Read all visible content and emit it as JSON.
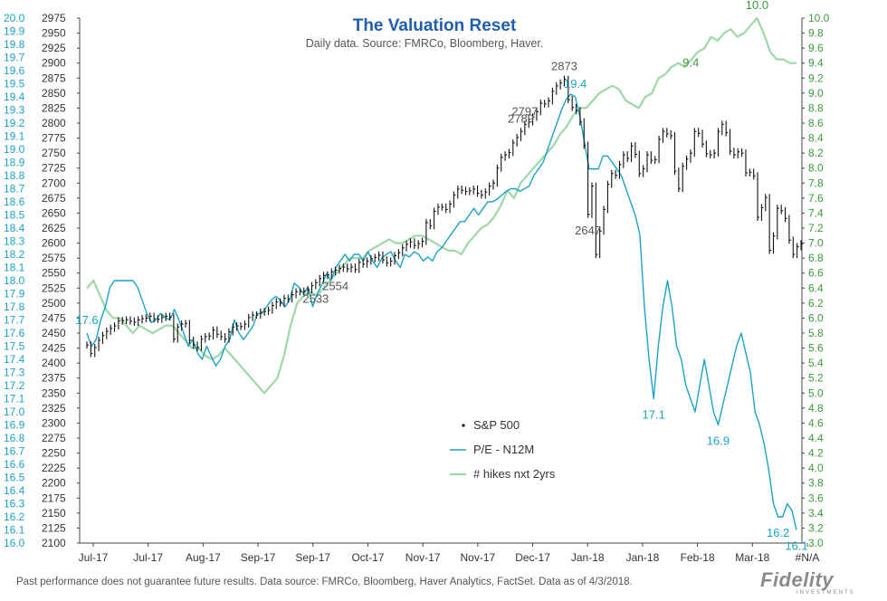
{
  "chart_data": {
    "type": "line",
    "title": "The Valuation Reset",
    "subtitle": "Daily data.  Source: FMRCo, Bloomberg, Haver.",
    "x_labels": [
      "Jul-17",
      "Jul-17",
      "Aug-17",
      "Sep-17",
      "Sep-17",
      "Oct-17",
      "Nov-17",
      "Nov-17",
      "Dec-17",
      "Jan-18",
      "Jan-18",
      "Feb-18",
      "Mar-18",
      "#N/A"
    ],
    "axes": {
      "left": {
        "range": [
          16.0,
          20.0
        ],
        "ticks": [
          "20.0",
          "19.9",
          "19.8",
          "19.7",
          "19.6",
          "19.5",
          "19.4",
          "19.3",
          "19.2",
          "19.1",
          "19.0",
          "18.9",
          "18.8",
          "18.7",
          "18.6",
          "18.5",
          "18.4",
          "18.3",
          "18.2",
          "18.1",
          "18.0",
          "17.9",
          "17.8",
          "17.7",
          "17.6",
          "17.5",
          "17.4",
          "17.3",
          "17.2",
          "17.1",
          "17.0",
          "16.9",
          "16.8",
          "16.7",
          "16.6",
          "16.5",
          "16.4",
          "16.3",
          "16.2",
          "16.1",
          "16.0"
        ]
      },
      "middle": {
        "range": [
          2100,
          2975
        ],
        "ticks": [
          "2975",
          "2950",
          "2925",
          "2900",
          "2875",
          "2850",
          "2825",
          "2800",
          "2775",
          "2750",
          "2725",
          "2700",
          "2675",
          "2650",
          "2625",
          "2600",
          "2575",
          "2550",
          "2525",
          "2500",
          "2475",
          "2450",
          "2425",
          "2400",
          "2375",
          "2350",
          "2325",
          "2300",
          "2275",
          "2250",
          "2225",
          "2200",
          "2175",
          "2150",
          "2125",
          "2100"
        ]
      },
      "right": {
        "range": [
          3.0,
          10.0
        ],
        "ticks": [
          "10.0",
          "9.8",
          "9.6",
          "9.4",
          "9.2",
          "9.0",
          "8.8",
          "8.6",
          "8.4",
          "8.2",
          "8.0",
          "7.8",
          "7.6",
          "7.4",
          "7.2",
          "7.0",
          "6.8",
          "6.6",
          "6.4",
          "6.2",
          "6.0",
          "5.8",
          "5.6",
          "5.4",
          "5.2",
          "5.0",
          "4.8",
          "4.6",
          "4.4",
          "4.2",
          "4.0",
          "3.8",
          "3.6",
          "3.4",
          "3.2",
          "3.0"
        ]
      }
    },
    "series": [
      {
        "name": "S&P 500",
        "axis": "middle",
        "color": "#111111",
        "values": [
          2430,
          2416,
          2426,
          2438,
          2446,
          2453,
          2458,
          2462,
          2470,
          2471,
          2472,
          2470,
          2468,
          2472,
          2474,
          2475,
          2478,
          2474,
          2473,
          2476,
          2478,
          2477,
          2440,
          2460,
          2465,
          2466,
          2438,
          2430,
          2426,
          2440,
          2444,
          2445,
          2455,
          2448,
          2444,
          2440,
          2452,
          2460,
          2462,
          2461,
          2465,
          2476,
          2480,
          2480,
          2485,
          2486,
          2488,
          2496,
          2502,
          2500,
          2508,
          2507,
          2514,
          2519,
          2519,
          2520,
          2522,
          2529,
          2534,
          2541,
          2546,
          2547,
          2552,
          2555,
          2558,
          2560,
          2557,
          2560,
          2556,
          2568,
          2565,
          2570,
          2574,
          2576,
          2580,
          2572,
          2567,
          2570,
          2579,
          2584,
          2592,
          2598,
          2602,
          2596,
          2599,
          2603,
          2634,
          2629,
          2653,
          2660,
          2660,
          2656,
          2665,
          2680,
          2690,
          2688,
          2686,
          2687,
          2690,
          2683,
          2680,
          2685,
          2695,
          2700,
          2725,
          2743,
          2747,
          2751,
          2767,
          2776,
          2786,
          2798,
          2802,
          2810,
          2819,
          2833,
          2832,
          2837,
          2853,
          2862,
          2867,
          2873,
          2839,
          2826,
          2821,
          2802,
          2763,
          2648,
          2695,
          2581,
          2620,
          2656,
          2698,
          2716,
          2713,
          2731,
          2747,
          2741,
          2762,
          2748,
          2716,
          2724,
          2747,
          2738,
          2739,
          2773,
          2786,
          2782,
          2779,
          2720,
          2691,
          2728,
          2740,
          2750,
          2786,
          2783,
          2765,
          2749,
          2747,
          2750,
          2786,
          2798,
          2784,
          2753,
          2747,
          2752,
          2750,
          2717,
          2718,
          2712,
          2643,
          2659,
          2676,
          2588,
          2612,
          2658,
          2654,
          2641,
          2605,
          2581,
          2594,
          2599
        ]
      },
      {
        "name": "P/E - N12M",
        "axis": "left",
        "color": "#1aa3c8",
        "values": [
          17.6,
          17.5,
          17.55,
          17.7,
          17.8,
          17.95,
          18.0,
          18.0,
          18.0,
          18.0,
          18.0,
          17.95,
          17.85,
          17.75,
          17.68,
          17.7,
          17.75,
          17.72,
          17.7,
          17.78,
          17.7,
          17.6,
          17.5,
          17.55,
          17.45,
          17.4,
          17.5,
          17.42,
          17.35,
          17.4,
          17.5,
          17.55,
          17.7,
          17.6,
          17.55,
          17.6,
          17.65,
          17.75,
          17.75,
          17.8,
          17.85,
          17.88,
          17.85,
          17.8,
          17.85,
          17.98,
          17.95,
          17.9,
          17.95,
          17.8,
          17.9,
          17.97,
          18.05,
          18.0,
          18.1,
          18.15,
          18.2,
          18.15,
          18.2,
          18.2,
          18.15,
          18.22,
          18.15,
          18.1,
          18.17,
          18.2,
          18.22,
          18.15,
          18.1,
          18.2,
          18.18,
          18.22,
          18.2,
          18.15,
          18.18,
          18.15,
          18.22,
          18.25,
          18.3,
          18.35,
          18.4,
          18.45,
          18.45,
          18.5,
          18.55,
          18.5,
          18.55,
          18.6,
          18.6,
          18.62,
          18.65,
          18.68,
          18.7,
          18.7,
          18.68,
          18.7,
          18.72,
          18.8,
          18.85,
          18.9,
          19.0,
          19.1,
          19.2,
          19.3,
          19.38,
          19.42,
          19.4,
          19.25,
          19.05,
          18.85,
          18.85,
          18.85,
          18.95,
          18.95,
          18.9,
          18.85,
          18.8,
          18.7,
          18.6,
          18.5,
          18.35,
          17.8,
          17.4,
          17.1,
          17.5,
          17.8,
          18.0,
          17.8,
          17.5,
          17.4,
          17.2,
          17.1,
          17.0,
          17.2,
          17.4,
          17.2,
          17.0,
          16.9,
          17.05,
          17.2,
          17.35,
          17.5,
          17.6,
          17.45,
          17.3,
          17.0,
          16.9,
          16.75,
          16.55,
          16.3,
          16.2,
          16.2,
          16.3,
          16.25,
          16.1
        ]
      },
      {
        "name": "# hikes nxt 2yrs",
        "axis": "right",
        "color": "#9ed8a8",
        "values": [
          6.4,
          6.5,
          6.3,
          6.1,
          6.0,
          6.0,
          5.9,
          5.8,
          5.9,
          5.85,
          5.8,
          5.85,
          5.9,
          5.9,
          5.8,
          5.7,
          5.6,
          5.6,
          5.5,
          5.45,
          5.5,
          5.6,
          5.5,
          5.4,
          5.3,
          5.2,
          5.1,
          5.0,
          5.1,
          5.2,
          5.5,
          5.9,
          6.2,
          6.3,
          6.35,
          6.3,
          6.4,
          6.5,
          6.6,
          6.7,
          6.8,
          6.8,
          6.8,
          6.9,
          6.95,
          7.0,
          7.05,
          7.0,
          7.0,
          7.05,
          7.1,
          7.1,
          7.05,
          7.0,
          6.95,
          6.9,
          6.9,
          6.85,
          7.0,
          7.1,
          7.2,
          7.25,
          7.35,
          7.5,
          7.7,
          7.6,
          7.8,
          7.9,
          8.0,
          8.1,
          8.2,
          8.3,
          8.45,
          8.55,
          8.7,
          8.8,
          8.8,
          8.9,
          9.0,
          9.05,
          9.1,
          9.05,
          8.9,
          8.85,
          8.8,
          8.95,
          9.0,
          9.2,
          9.25,
          9.35,
          9.4,
          9.35,
          9.45,
          9.55,
          9.6,
          9.75,
          9.7,
          9.8,
          9.85,
          9.75,
          9.8,
          9.9,
          10.0,
          9.8,
          9.55,
          9.45,
          9.45,
          9.4,
          9.4
        ]
      }
    ],
    "annotations": [
      {
        "text": "2873",
        "series": "S&P 500"
      },
      {
        "text": "2533",
        "series": "S&P 500"
      },
      {
        "text": "2789",
        "series": "S&P 500"
      },
      {
        "text": "2797",
        "series": "S&P 500"
      },
      {
        "text": "2647",
        "series": "S&P 500"
      },
      {
        "text": "2554",
        "series": "S&P 500"
      },
      {
        "text": "19.4",
        "series": "P/E - N12M"
      },
      {
        "text": "17.1",
        "series": "P/E - N12M"
      },
      {
        "text": "16.9",
        "series": "P/E - N12M"
      },
      {
        "text": "17.6",
        "series": "P/E - N12M"
      },
      {
        "text": "16.2",
        "series": "P/E - N12M"
      },
      {
        "text": "16.1",
        "series": "P/E - N12M"
      },
      {
        "text": "10.0",
        "series": "# hikes nxt 2yrs"
      },
      {
        "text": "9.4",
        "series": "# hikes nxt 2yrs"
      }
    ],
    "legend": {
      "placement": "bottom-center",
      "items": [
        "S&P 500",
        "P/E - N12M",
        "# hikes nxt 2yrs"
      ]
    },
    "grid": false
  },
  "footer": {
    "disclaimer": "Past performance does not guarantee future results. Data source: FMRCo, Bloomberg, Haver Analytics, FactSet.  Data as of 4/3/2018.",
    "logo": "Fidelity",
    "logo_sub": "INVESTMENTS"
  }
}
